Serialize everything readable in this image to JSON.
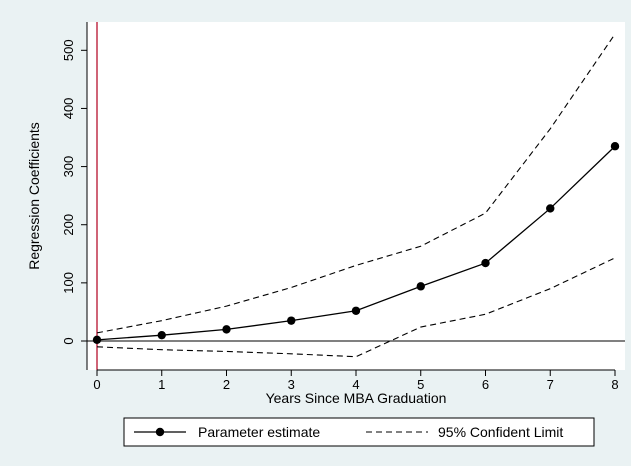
{
  "colors": {
    "background": "#eaf2f3",
    "plot_background": "#ffffff",
    "vertical_reference_line": "#c0304a",
    "series_line": "#000000"
  },
  "chart_data": {
    "type": "line",
    "title": "",
    "xlabel": "Years Since MBA Graduation",
    "ylabel": "Regression Coefficients",
    "xlim": [
      0,
      8
    ],
    "ylim": [
      -50,
      530
    ],
    "x_ticks": [
      0,
      1,
      2,
      3,
      4,
      5,
      6,
      7,
      8
    ],
    "y_ticks": [
      0,
      100,
      200,
      300,
      400,
      500
    ],
    "grid": false,
    "legend_position": "bottom",
    "reference_lines": {
      "horizontal_y": 0,
      "vertical_x": 0
    },
    "x": [
      0,
      1,
      2,
      3,
      4,
      5,
      6,
      7,
      8
    ],
    "series": [
      {
        "name": "Parameter estimate",
        "style": "solid-with-markers",
        "values": [
          2,
          10,
          20,
          35,
          52,
          94,
          134,
          228,
          335
        ]
      },
      {
        "name": "95% Confident Limit",
        "style": "dashed",
        "values": [
          14,
          35,
          60,
          92,
          130,
          163,
          220,
          365,
          528
        ]
      },
      {
        "name": "95% Confident Limit",
        "style": "dashed",
        "values": [
          -10,
          -15,
          -18,
          -22,
          -27,
          24,
          46,
          90,
          143
        ]
      }
    ]
  }
}
